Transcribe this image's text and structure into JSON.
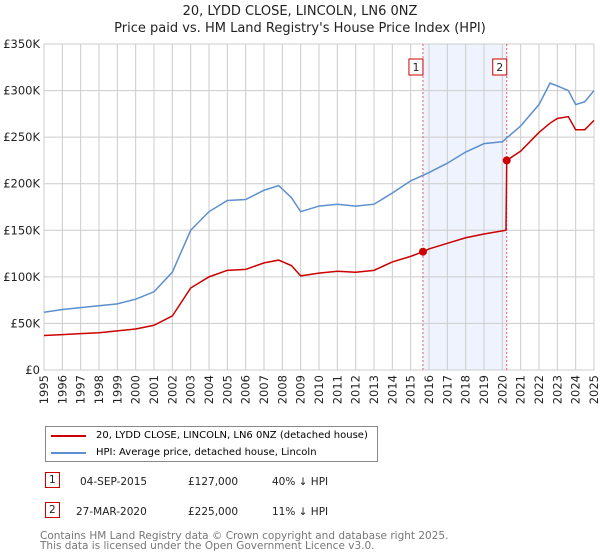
{
  "title": "20, LYDD CLOSE, LINCOLN, LN6 0NZ",
  "subtitle": "Price paid vs. HM Land Registry's House Price Index (HPI)",
  "chart_data": {
    "type": "line",
    "xlim": [
      1995,
      2025
    ],
    "ylim": [
      0,
      350000
    ],
    "yticks": [
      {
        "v": 0,
        "label": "£0"
      },
      {
        "v": 50000,
        "label": "£50K"
      },
      {
        "v": 100000,
        "label": "£100K"
      },
      {
        "v": 150000,
        "label": "£150K"
      },
      {
        "v": 200000,
        "label": "£200K"
      },
      {
        "v": 250000,
        "label": "£250K"
      },
      {
        "v": 300000,
        "label": "£300K"
      },
      {
        "v": 350000,
        "label": "£350K"
      }
    ],
    "xticks": [
      "1995",
      "1996",
      "1997",
      "1998",
      "1999",
      "2000",
      "2001",
      "2002",
      "2003",
      "2004",
      "2005",
      "2006",
      "2007",
      "2008",
      "2009",
      "2010",
      "2011",
      "2012",
      "2013",
      "2014",
      "2015",
      "2016",
      "2017",
      "2018",
      "2019",
      "2020",
      "2021",
      "2022",
      "2023",
      "2024",
      "2025"
    ],
    "series": [
      {
        "name": "20, LYDD CLOSE, LINCOLN, LN6 0NZ (detached house)",
        "color": "#cc0000",
        "x": [
          1995,
          1996,
          1997,
          1998,
          1999,
          2000,
          2001,
          2002,
          2003,
          2004,
          2005,
          2006,
          2007,
          2007.8,
          2008.5,
          2009,
          2010,
          2011,
          2012,
          2013,
          2014,
          2015,
          2015.67,
          2016,
          2017,
          2018,
          2019,
          2020.2,
          2020.24,
          2021,
          2022,
          2022.6,
          2023,
          2023.6,
          2024,
          2024.5,
          2025
        ],
        "y": [
          37000,
          38000,
          39000,
          40000,
          42000,
          44000,
          48000,
          58000,
          88000,
          100000,
          107000,
          108000,
          115000,
          118000,
          112000,
          101000,
          104000,
          106000,
          105000,
          107000,
          116000,
          122000,
          127000,
          130000,
          136000,
          142000,
          146000,
          150000,
          225000,
          235000,
          255000,
          265000,
          270000,
          272000,
          258000,
          258000,
          268000
        ]
      },
      {
        "name": "HPI: Average price, detached house, Lincoln",
        "color": "#5b8fd0",
        "x": [
          1995,
          1996,
          1997,
          1998,
          1999,
          2000,
          2001,
          2002,
          2003,
          2004,
          2005,
          2006,
          2007,
          2007.8,
          2008.5,
          2009,
          2010,
          2011,
          2012,
          2013,
          2014,
          2015,
          2016,
          2017,
          2018,
          2019,
          2020,
          2021,
          2022,
          2022.6,
          2023,
          2023.6,
          2024,
          2024.5,
          2025
        ],
        "y": [
          62000,
          65000,
          67000,
          69000,
          71000,
          76000,
          84000,
          105000,
          150000,
          170000,
          182000,
          183000,
          193000,
          198000,
          185000,
          170000,
          176000,
          178000,
          176000,
          178000,
          190000,
          203000,
          212000,
          222000,
          234000,
          243000,
          245000,
          262000,
          285000,
          308000,
          305000,
          300000,
          285000,
          288000,
          300000
        ]
      }
    ],
    "shade": [
      2015.67,
      2020.24
    ],
    "markers": [
      {
        "label": "1",
        "x": 2015.67,
        "y": 127000
      },
      {
        "label": "2",
        "x": 2020.24,
        "y": 225000
      }
    ]
  },
  "legend": {
    "red": "20, LYDD CLOSE, LINCOLN, LN6 0NZ (detached house)",
    "blue": "HPI: Average price, detached house, Lincoln"
  },
  "transactions": [
    {
      "num": "1",
      "date": "04-SEP-2015",
      "price": "£127,000",
      "hpi": "40% ↓ HPI"
    },
    {
      "num": "2",
      "date": "27-MAR-2020",
      "price": "£225,000",
      "hpi": "11% ↓ HPI"
    }
  ],
  "footer": [
    "Contains HM Land Registry data © Crown copyright and database right 2025.",
    "This data is licensed under the Open Government Licence v3.0."
  ]
}
